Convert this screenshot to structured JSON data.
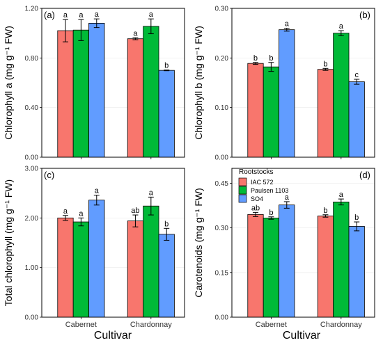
{
  "figure": {
    "x_title": "Cultivar",
    "legend_title": "Rootstocks",
    "legend_items": [
      "IAC 572",
      "Paulsen 1103",
      "SO4"
    ]
  },
  "chart_data": [
    {
      "type": "bar",
      "panel_label": "(a)",
      "ylabel": "Chlorophyll a (mg g⁻¹ FW)",
      "categories": [
        "Cabernet",
        "Chardonnay"
      ],
      "ylim": [
        0,
        1.2
      ],
      "yticks": [
        "0.00",
        "0.40",
        "0.80",
        "1.20"
      ],
      "series": [
        {
          "name": "IAC 572",
          "color": "#f8766d",
          "values": [
            1.02,
            0.955
          ],
          "errors": [
            0.09,
            0.008
          ],
          "letters": [
            "a",
            "a"
          ]
        },
        {
          "name": "Paulsen 1103",
          "color": "#00ba38",
          "values": [
            1.025,
            1.055
          ],
          "errors": [
            0.085,
            0.06
          ],
          "letters": [
            "a",
            "a"
          ]
        },
        {
          "name": "SO4",
          "color": "#619cff",
          "values": [
            1.08,
            0.7
          ],
          "errors": [
            0.035,
            0.003
          ],
          "letters": [
            "a",
            "b"
          ]
        }
      ]
    },
    {
      "type": "bar",
      "panel_label": "(b)",
      "ylabel": "Chlorophyll b (mg g⁻¹ FW)",
      "categories": [
        "Cabernet",
        "Chardonnay"
      ],
      "ylim": [
        0,
        0.3
      ],
      "yticks": [
        "0.00",
        "0.10",
        "0.20",
        "0.30"
      ],
      "series": [
        {
          "name": "IAC 572",
          "color": "#f8766d",
          "values": [
            0.189,
            0.177
          ],
          "errors": [
            0.002,
            0.002
          ],
          "letters": [
            "b",
            "b"
          ]
        },
        {
          "name": "Paulsen 1103",
          "color": "#00ba38",
          "values": [
            0.182,
            0.25
          ],
          "errors": [
            0.009,
            0.005
          ],
          "letters": [
            "b",
            "a"
          ]
        },
        {
          "name": "SO4",
          "color": "#619cff",
          "values": [
            0.257,
            0.152
          ],
          "errors": [
            0.003,
            0.005
          ],
          "letters": [
            "a",
            "c"
          ]
        }
      ]
    },
    {
      "type": "bar",
      "panel_label": "(c)",
      "ylabel": "Total chlorophyll (mg g⁻¹ FW)",
      "categories": [
        "Cabernet",
        "Chardonnay"
      ],
      "ylim": [
        0,
        3.0
      ],
      "yticks": [
        "0.00",
        "1.00",
        "2.00",
        "3.00"
      ],
      "series": [
        {
          "name": "IAC 572",
          "color": "#f8766d",
          "values": [
            2.0,
            1.94
          ],
          "errors": [
            0.05,
            0.12
          ],
          "letters": [
            "a",
            "ab"
          ]
        },
        {
          "name": "Paulsen 1103",
          "color": "#00ba38",
          "values": [
            1.92,
            2.24
          ],
          "errors": [
            0.08,
            0.18
          ],
          "letters": [
            "a",
            "a"
          ]
        },
        {
          "name": "SO4",
          "color": "#619cff",
          "values": [
            2.36,
            1.67
          ],
          "errors": [
            0.1,
            0.12
          ],
          "letters": [
            "a",
            "b"
          ]
        }
      ]
    },
    {
      "type": "bar",
      "panel_label": "(d)",
      "ylabel": "Carotenoids (mg g⁻¹ FW)",
      "categories": [
        "Cabernet",
        "Chardonnay"
      ],
      "ylim": [
        0,
        0.5
      ],
      "yticks": [
        "0.00",
        "0.15",
        "0.30",
        "0.45"
      ],
      "series": [
        {
          "name": "IAC 572",
          "color": "#f8766d",
          "values": [
            0.345,
            0.34
          ],
          "errors": [
            0.007,
            0.004
          ],
          "letters": [
            "ab",
            "b"
          ]
        },
        {
          "name": "Paulsen 1103",
          "color": "#00ba38",
          "values": [
            0.333,
            0.387
          ],
          "errors": [
            0.004,
            0.01
          ],
          "letters": [
            "b",
            "a"
          ]
        },
        {
          "name": "SO4",
          "color": "#619cff",
          "values": [
            0.377,
            0.305
          ],
          "errors": [
            0.011,
            0.015
          ],
          "letters": [
            "a",
            "b"
          ]
        }
      ]
    }
  ]
}
